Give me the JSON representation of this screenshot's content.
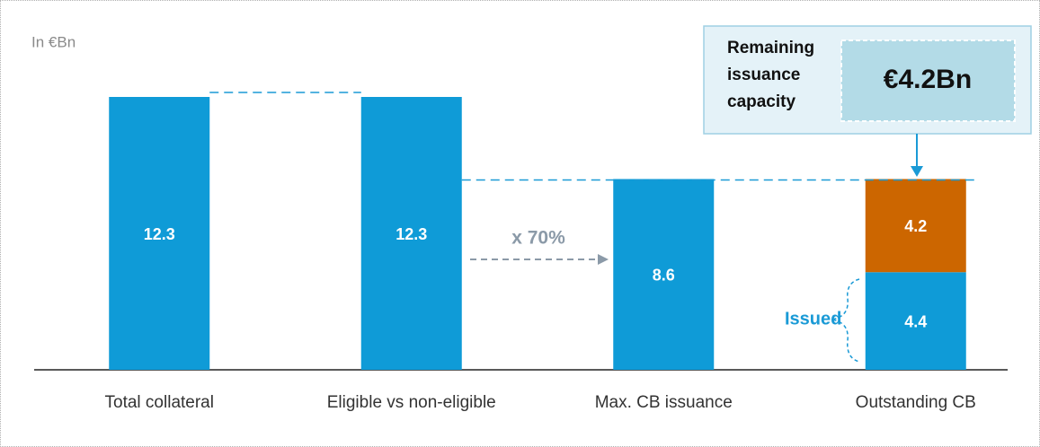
{
  "chart_data": {
    "type": "bar",
    "unit_label": "In €Bn",
    "categories": [
      "Total collateral",
      "Eligible vs non-eligible",
      "Max. CB issuance",
      "Outstanding CB"
    ],
    "series": [
      {
        "name": "Issued",
        "color": "#0f9bd7",
        "values": [
          12.3,
          12.3,
          8.6,
          4.4
        ]
      },
      {
        "name": "Remaining issuance capacity",
        "color": "#cc6600",
        "values": [
          null,
          null,
          null,
          4.2
        ]
      }
    ],
    "annotations": [
      "x 70%",
      "€4.2Bn"
    ]
  }
}
